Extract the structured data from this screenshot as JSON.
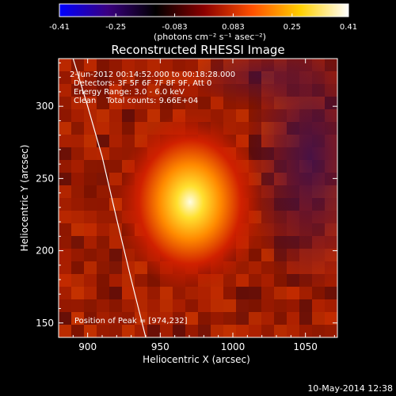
{
  "chart_data": {
    "type": "heatmap",
    "title": "Reconstructed RHESSI Image",
    "xlabel": "Heliocentric X (arcsec)",
    "ylabel": "Heliocentric Y (arcsec)",
    "xlim": [
      880,
      1072
    ],
    "ylim": [
      140,
      333
    ],
    "x_ticks": [
      900,
      950,
      1000,
      1050
    ],
    "y_ticks": [
      150,
      200,
      250,
      300
    ],
    "colorbar": {
      "min": -0.41,
      "max": 0.41,
      "ticks": [
        -0.41,
        -0.25,
        -0.083,
        0.083,
        0.25,
        0.41
      ],
      "tick_labels": [
        "-0.41",
        "-0.25",
        "-0.083",
        "0.083",
        "0.25",
        "0.41"
      ],
      "unit_label": "(photons cm⁻² s⁻¹ asec⁻²)",
      "colormap": [
        "#0000ff",
        "#3a0080",
        "#000000",
        "#8a0000",
        "#ff5000",
        "#ffd000",
        "#ffffff"
      ]
    },
    "annotations": [
      " 2-Jun-2012 00:14:52.000 to 00:18:28.000",
      "Detectors: 3F 5F 6F 7F 8F 9F, Att 0",
      "Energy Range: 3.0 - 6.0 keV",
      "Clean    Total counts: 9.66E+04"
    ],
    "peak_label": "Position of Peak = [974,232]",
    "peak": {
      "x": 974,
      "y": 232
    },
    "limb_curve": [
      [
        890,
        333
      ],
      [
        900,
        300
      ],
      [
        910,
        265
      ],
      [
        920,
        222
      ],
      [
        930,
        180
      ],
      [
        940,
        140
      ]
    ],
    "grid": false,
    "legend": "none"
  },
  "footer": {
    "timestamp": "10-May-2014 12:38"
  }
}
